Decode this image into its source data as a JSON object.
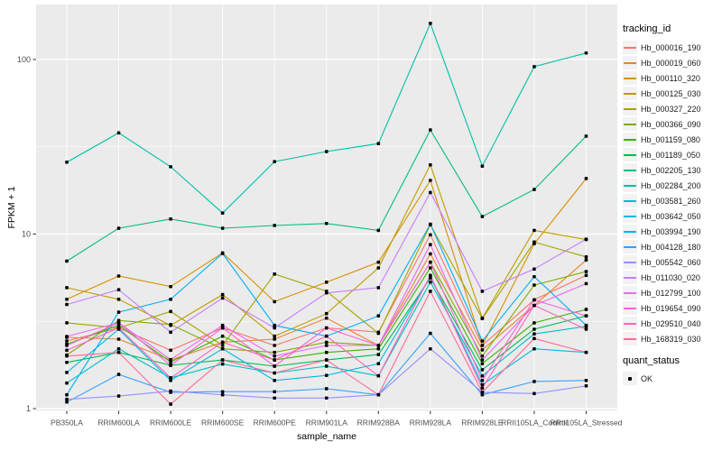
{
  "chart_data": {
    "type": "line",
    "title": "",
    "xlabel": "sample_name",
    "ylabel": "FPKM + 1",
    "y_scale": "log10",
    "y_ticks": [
      1,
      10,
      100
    ],
    "y_minor_ticks": [
      3.162,
      31.62
    ],
    "ylim": [
      0.9,
      210
    ],
    "grid": true,
    "legend_position": "right",
    "legend_title": "tracking_id",
    "x_categories": [
      "PB350LA",
      "RRIM600LA",
      "RRIM600LE",
      "RRIM600SE",
      "RRIM600PE",
      "RRIM901LA",
      "RRIM928BA",
      "RRIM928LA",
      "RRIM928LE",
      "RRII105LA_Control",
      "RRII105LA_Stressed"
    ],
    "series": [
      {
        "name": "Hb_000016_190",
        "color": "#F8766D",
        "values": [
          2.44,
          2.9,
          2.16,
          2.9,
          2.3,
          2.9,
          2.74,
          9.9,
          2.3,
          4.2,
          5.8
        ]
      },
      {
        "name": "Hb_000019_060",
        "color": "#EA8331",
        "values": [
          2.56,
          2.5,
          1.9,
          2.4,
          2.5,
          3.3,
          2.3,
          7.7,
          2.17,
          3.9,
          7.1
        ]
      },
      {
        "name": "Hb_000110_320",
        "color": "#D89000",
        "values": [
          4.23,
          5.75,
          5.0,
          7.8,
          4.1,
          5.3,
          6.9,
          20.3,
          2.3,
          8.8,
          20.8
        ]
      },
      {
        "name": "Hb_000125_030",
        "color": "#C09B00",
        "values": [
          4.93,
          4.23,
          3.0,
          4.5,
          2.6,
          3.5,
          6.4,
          24.9,
          3.3,
          10.5,
          9.3
        ]
      },
      {
        "name": "Hb_000327_220",
        "color": "#A3A500",
        "values": [
          3.1,
          2.9,
          3.6,
          2.3,
          5.9,
          4.7,
          2.7,
          11.3,
          3.28,
          9.0,
          7.4
        ]
      },
      {
        "name": "Hb_000366_090",
        "color": "#7CAE00",
        "values": [
          2.03,
          3.2,
          3.03,
          2.2,
          2.1,
          2.4,
          2.3,
          6.9,
          2.0,
          5.1,
          6.1
        ]
      },
      {
        "name": "Hb_001159_080",
        "color": "#39B600",
        "values": [
          2.34,
          3.0,
          1.85,
          2.6,
          1.9,
          2.1,
          2.2,
          6.4,
          1.81,
          3.1,
          3.7
        ]
      },
      {
        "name": "Hb_001189_050",
        "color": "#00BB4E",
        "values": [
          1.84,
          2.1,
          1.77,
          1.9,
          1.75,
          1.9,
          2.04,
          5.6,
          1.67,
          2.85,
          3.4
        ]
      },
      {
        "name": "Hb_002205_130",
        "color": "#00BF7D",
        "values": [
          7.0,
          10.8,
          12.2,
          10.8,
          11.2,
          11.5,
          10.5,
          39.5,
          12.6,
          18.0,
          36.4
        ]
      },
      {
        "name": "Hb_002284_200",
        "color": "#00C1A3",
        "values": [
          25.8,
          38.0,
          24.3,
          13.2,
          26.0,
          29.7,
          33.0,
          161.0,
          24.5,
          91.0,
          109.0
        ]
      },
      {
        "name": "Hb_003581_260",
        "color": "#00BFC4",
        "values": [
          1.4,
          2.2,
          1.5,
          1.8,
          1.6,
          1.75,
          1.54,
          5.3,
          1.54,
          2.68,
          2.96
        ]
      },
      {
        "name": "Hb_003642_050",
        "color": "#00BAE0",
        "values": [
          1.61,
          2.85,
          1.45,
          2.2,
          1.45,
          1.55,
          1.81,
          5.7,
          1.37,
          2.2,
          2.1
        ]
      },
      {
        "name": "Hb_003994_190",
        "color": "#00B0F6",
        "values": [
          1.2,
          3.57,
          4.23,
          7.74,
          3.0,
          2.6,
          3.4,
          11.4,
          2.44,
          5.7,
          3.0
        ]
      },
      {
        "name": "Hb_004128_180",
        "color": "#35A2FF",
        "values": [
          1.09,
          1.57,
          1.24,
          1.25,
          1.25,
          1.3,
          1.2,
          2.7,
          1.2,
          1.43,
          1.45
        ]
      },
      {
        "name": "Hb_005542_060",
        "color": "#9590FF",
        "values": [
          1.13,
          1.18,
          1.26,
          1.2,
          1.15,
          1.15,
          1.2,
          2.2,
          1.24,
          1.22,
          1.35
        ]
      },
      {
        "name": "Hb_011030_020",
        "color": "#C77CFF",
        "values": [
          3.95,
          4.8,
          2.74,
          4.3,
          2.9,
          4.6,
          4.93,
          17.3,
          4.7,
          6.3,
          9.35
        ]
      },
      {
        "name": "Hb_012799_100",
        "color": "#E76BF3",
        "values": [
          2.59,
          3.1,
          1.91,
          3.0,
          2.0,
          2.3,
          2.3,
          8.7,
          1.9,
          3.9,
          5.2
        ]
      },
      {
        "name": "Hb_019654_090",
        "color": "#FA62DB",
        "values": [
          2.3,
          3.1,
          1.77,
          2.9,
          1.75,
          2.9,
          2.3,
          6.9,
          1.45,
          4.2,
          3.4
        ]
      },
      {
        "name": "Hb_029510_040",
        "color": "#FF62BC",
        "values": [
          2.16,
          2.9,
          1.5,
          2.4,
          1.9,
          2.6,
          1.54,
          5.8,
          1.31,
          3.9,
          2.85
        ]
      },
      {
        "name": "Hb_168319_030",
        "color": "#FF6A98",
        "values": [
          2.0,
          2.1,
          1.06,
          1.9,
          1.6,
          1.9,
          1.2,
          4.7,
          1.24,
          2.52,
          2.1
        ]
      }
    ],
    "quant_legend": {
      "title": "quant_status",
      "label": "OK",
      "marker_shape": "square",
      "marker_color": "#000000"
    },
    "colors": {
      "panel_bg": "#EBEBEB",
      "grid": "#FFFFFF",
      "tick_label": "#4D4D4D",
      "axis_title": "#000000",
      "marker": "#000000",
      "legend_key_bg": "#F2F2F2"
    }
  }
}
